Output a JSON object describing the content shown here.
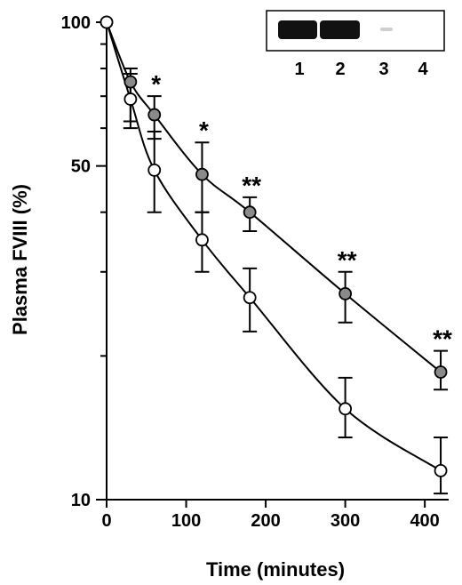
{
  "chart_data": {
    "type": "scatter",
    "title": "",
    "xlabel": "Time (minutes)",
    "ylabel": "Plasma FVIII (%)",
    "xlim": [
      0,
      430
    ],
    "ylim": [
      10,
      100
    ],
    "yscale": "log",
    "x_ticks": [
      0,
      100,
      200,
      300,
      400
    ],
    "y_ticks": [
      10,
      50,
      100
    ],
    "grid": false,
    "legend": "none",
    "series": [
      {
        "marker": "gray-filled-circle",
        "color": "#8a8a8a",
        "x": [
          0,
          30,
          60,
          120,
          180,
          300,
          420
        ],
        "y": [
          100,
          75,
          64,
          48,
          40,
          27,
          18.5
        ],
        "err_high": [
          100,
          80,
          70,
          56,
          43,
          30,
          20.5
        ],
        "err_low": [
          100,
          62,
          57,
          40,
          36.5,
          23.5,
          17
        ]
      },
      {
        "marker": "open-circle",
        "color": "#ffffff",
        "x": [
          0,
          30,
          60,
          120,
          180,
          300,
          420
        ],
        "y": [
          100,
          69,
          49,
          35,
          26.5,
          15.5,
          11.5
        ],
        "err_high": [
          100,
          78,
          59,
          40,
          30.5,
          18,
          13.5
        ],
        "err_low": [
          100,
          60,
          40,
          30,
          22.5,
          13.5,
          10.3
        ]
      }
    ],
    "annotations": [
      {
        "text": "*",
        "x": 60
      },
      {
        "text": "*",
        "x": 120
      },
      {
        "text": "**",
        "x": 180
      },
      {
        "text": "**",
        "x": 300
      },
      {
        "text": "**",
        "x": 420
      }
    ],
    "inset_lanes": [
      "1",
      "2",
      "3",
      "4"
    ]
  }
}
